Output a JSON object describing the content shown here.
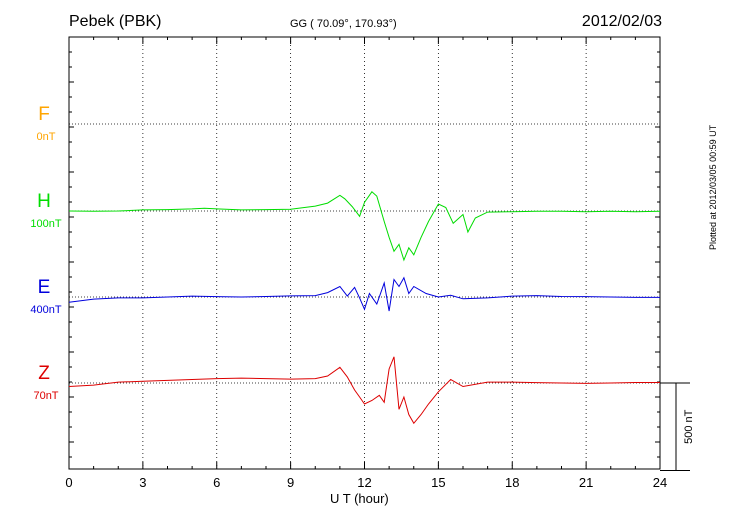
{
  "header": {
    "station": "Pebek (PBK)",
    "coordinates": "GG ( 70.09°, 170.93°)",
    "date": "2012/02/03"
  },
  "footer": {
    "plotted": "Plotted at 2012/03/05 00:59 UT"
  },
  "scale_bar": {
    "label": "500 nT",
    "value_nT": 500
  },
  "chart_data": {
    "type": "line",
    "title": "Pebek (PBK)",
    "xlabel": "U T (hour)",
    "ylabel": "",
    "xlim": [
      0,
      24
    ],
    "x_ticks": [
      0,
      3,
      6,
      9,
      12,
      15,
      18,
      21,
      24
    ],
    "grid": true,
    "series": [
      {
        "name": "F",
        "scale": "0nT",
        "color": "#FFA500",
        "baseline_y": "",
        "x": [],
        "y": []
      },
      {
        "name": "H",
        "scale": "100nT",
        "color": "#00DD00",
        "x": [
          0,
          1,
          2,
          3,
          4,
          5,
          5.5,
          6,
          7,
          8,
          9,
          10,
          10.5,
          11,
          11.2,
          11.5,
          11.8,
          12,
          12.3,
          12.5,
          12.8,
          13,
          13.2,
          13.4,
          13.6,
          13.8,
          14,
          14.3,
          14.6,
          15,
          15.3,
          15.6,
          16,
          16.2,
          16.5,
          17,
          18,
          19,
          20,
          21,
          22,
          23,
          24
        ],
        "y": [
          0,
          -2,
          0,
          6,
          8,
          12,
          16,
          12,
          6,
          8,
          10,
          28,
          45,
          90,
          70,
          25,
          -30,
          50,
          110,
          85,
          -60,
          -150,
          -230,
          -190,
          -280,
          -210,
          -250,
          -150,
          -60,
          40,
          20,
          -70,
          -20,
          -120,
          -40,
          -6,
          -4,
          -2,
          -2,
          -4,
          -2,
          -4,
          -2
        ]
      },
      {
        "name": "E",
        "scale": "400nT",
        "color": "#0000DD",
        "x": [
          0,
          1,
          2,
          3,
          4,
          5,
          6,
          7,
          8,
          9,
          10,
          10.5,
          11,
          11.3,
          11.6,
          11.8,
          12,
          12.2,
          12.5,
          12.8,
          13,
          13.2,
          13.4,
          13.6,
          13.8,
          14,
          14.5,
          15,
          15.5,
          16,
          17,
          18,
          19,
          20,
          21,
          22,
          23,
          24
        ],
        "y": [
          -30,
          -12,
          -5,
          -5,
          0,
          5,
          2,
          0,
          3,
          6,
          8,
          25,
          60,
          5,
          55,
          -5,
          -70,
          20,
          -40,
          80,
          -80,
          100,
          60,
          110,
          20,
          60,
          20,
          0,
          10,
          -10,
          -5,
          5,
          8,
          3,
          2,
          0,
          -2,
          -2
        ]
      },
      {
        "name": "Z",
        "scale": "70nT",
        "color": "#DD0000",
        "x": [
          0,
          1,
          2,
          3,
          4,
          5,
          6,
          7,
          8,
          9,
          10,
          10.5,
          11,
          11.3,
          11.6,
          11.8,
          12,
          12.3,
          12.6,
          12.8,
          13,
          13.2,
          13.4,
          13.6,
          13.8,
          14,
          14.3,
          14.6,
          15,
          15.5,
          16,
          17,
          18,
          19,
          20,
          21,
          22,
          23,
          24
        ],
        "y": [
          -20,
          -12,
          5,
          10,
          15,
          20,
          25,
          28,
          25,
          22,
          25,
          40,
          90,
          35,
          -40,
          -80,
          -120,
          -100,
          -70,
          -110,
          80,
          150,
          -150,
          -80,
          -180,
          -230,
          -180,
          -120,
          -50,
          20,
          -20,
          5,
          5,
          2,
          0,
          -2,
          0,
          3,
          3
        ]
      }
    ]
  }
}
